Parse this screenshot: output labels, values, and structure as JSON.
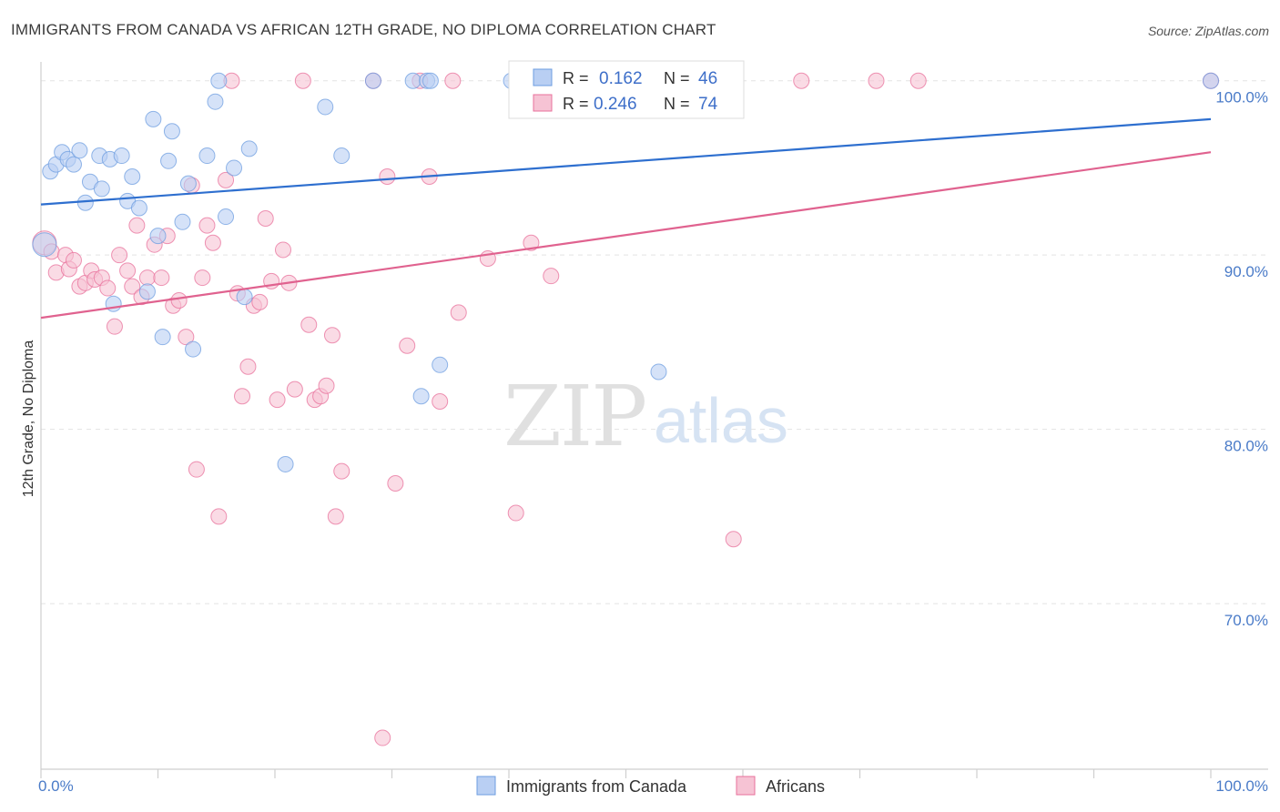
{
  "title": "IMMIGRANTS FROM CANADA VS AFRICAN 12TH GRADE, NO DIPLOMA CORRELATION CHART",
  "source": "Source: ZipAtlas.com",
  "watermark": {
    "zip": "ZIP",
    "atlas": "atlas"
  },
  "colors": {
    "blue": "#6d9de0",
    "blue_fill": "#b9cff3",
    "pink": "#e8709b",
    "pink_fill": "#f6c3d4",
    "accent": "#3e6fc9"
  },
  "stats": [
    {
      "r_label": "R = ",
      "r": "0.162",
      "n_label": "N = ",
      "n": "46"
    },
    {
      "r_label": "R = ",
      "r": "0.246",
      "n_label": "N = ",
      "n": "74"
    }
  ],
  "legend": [
    "Immigrants from Canada",
    "Africans"
  ],
  "chart_data": {
    "type": "scatter",
    "title": "IMMIGRANTS FROM CANADA VS AFRICAN 12TH GRADE, NO DIPLOMA CORRELATION CHART",
    "xlabel": "",
    "ylabel": "12th Grade, No Diploma",
    "xlim": [
      0,
      100
    ],
    "ylim": [
      60.5,
      101.5
    ],
    "x_tick_labels": [
      "0.0%",
      "100.0%"
    ],
    "y_ticks": [
      70,
      80,
      90,
      100
    ],
    "y_tick_labels": [
      "70.0%",
      "80.0%",
      "90.0%",
      "100.0%"
    ],
    "grid": true,
    "legend_position": "bottom",
    "series": [
      {
        "name": "Immigrants from Canada",
        "color": "#6d9de0",
        "trend": {
          "x": [
            0,
            100
          ],
          "y": [
            92.9,
            97.8
          ]
        },
        "points": [
          [
            0.3,
            90.6
          ],
          [
            0.8,
            94.8
          ],
          [
            1.3,
            95.2
          ],
          [
            1.8,
            95.9
          ],
          [
            2.3,
            95.5
          ],
          [
            2.8,
            95.2
          ],
          [
            3.3,
            96.0
          ],
          [
            3.8,
            93.0
          ],
          [
            4.2,
            94.2
          ],
          [
            5.0,
            95.7
          ],
          [
            5.2,
            93.8
          ],
          [
            5.9,
            95.5
          ],
          [
            6.2,
            87.2
          ],
          [
            6.9,
            95.7
          ],
          [
            7.4,
            93.1
          ],
          [
            7.8,
            94.5
          ],
          [
            8.4,
            92.7
          ],
          [
            9.1,
            87.9
          ],
          [
            9.6,
            97.8
          ],
          [
            10.0,
            91.1
          ],
          [
            10.4,
            85.3
          ],
          [
            10.9,
            95.4
          ],
          [
            11.2,
            97.1
          ],
          [
            12.1,
            91.9
          ],
          [
            12.6,
            94.1
          ],
          [
            13.0,
            84.6
          ],
          [
            14.2,
            95.7
          ],
          [
            14.9,
            98.8
          ],
          [
            15.2,
            100.0
          ],
          [
            15.8,
            92.2
          ],
          [
            16.5,
            95.0
          ],
          [
            17.4,
            87.6
          ],
          [
            17.8,
            96.1
          ],
          [
            20.9,
            78.0
          ],
          [
            24.3,
            98.5
          ],
          [
            25.7,
            95.7
          ],
          [
            28.4,
            100.0
          ],
          [
            31.8,
            100.0
          ],
          [
            32.5,
            81.9
          ],
          [
            33.0,
            100.0
          ],
          [
            33.3,
            100.0
          ],
          [
            34.1,
            83.7
          ],
          [
            40.2,
            100.0
          ],
          [
            41.6,
            100.0
          ],
          [
            52.8,
            83.3
          ],
          [
            100.0,
            100.0
          ]
        ]
      },
      {
        "name": "Africans",
        "color": "#e8709b",
        "trend": {
          "x": [
            0,
            100
          ],
          "y": [
            86.4,
            95.9
          ]
        },
        "points": [
          [
            0.3,
            90.7
          ],
          [
            0.9,
            90.2
          ],
          [
            1.3,
            89.0
          ],
          [
            2.1,
            90.0
          ],
          [
            2.4,
            89.2
          ],
          [
            2.8,
            89.7
          ],
          [
            3.3,
            88.2
          ],
          [
            3.8,
            88.4
          ],
          [
            4.3,
            89.1
          ],
          [
            4.6,
            88.6
          ],
          [
            5.2,
            88.7
          ],
          [
            5.7,
            88.1
          ],
          [
            6.3,
            85.9
          ],
          [
            6.7,
            90.0
          ],
          [
            7.4,
            89.1
          ],
          [
            7.8,
            88.2
          ],
          [
            8.2,
            91.7
          ],
          [
            8.6,
            87.6
          ],
          [
            9.1,
            88.7
          ],
          [
            9.7,
            90.6
          ],
          [
            10.3,
            88.7
          ],
          [
            10.8,
            91.1
          ],
          [
            11.3,
            87.1
          ],
          [
            11.8,
            87.4
          ],
          [
            12.4,
            85.3
          ],
          [
            12.9,
            94.0
          ],
          [
            13.3,
            77.7
          ],
          [
            13.8,
            88.7
          ],
          [
            14.2,
            91.7
          ],
          [
            14.7,
            90.7
          ],
          [
            15.2,
            75.0
          ],
          [
            15.8,
            94.3
          ],
          [
            16.3,
            100.0
          ],
          [
            16.8,
            87.8
          ],
          [
            17.2,
            81.9
          ],
          [
            17.7,
            83.6
          ],
          [
            18.2,
            87.1
          ],
          [
            18.7,
            87.3
          ],
          [
            19.2,
            92.1
          ],
          [
            19.7,
            88.5
          ],
          [
            20.2,
            81.7
          ],
          [
            20.7,
            90.3
          ],
          [
            21.2,
            88.4
          ],
          [
            21.7,
            82.3
          ],
          [
            22.4,
            100.0
          ],
          [
            22.9,
            86.0
          ],
          [
            23.4,
            81.7
          ],
          [
            23.9,
            81.9
          ],
          [
            24.4,
            82.5
          ],
          [
            24.9,
            85.4
          ],
          [
            25.2,
            75.0
          ],
          [
            25.7,
            77.6
          ],
          [
            28.4,
            100.0
          ],
          [
            29.2,
            62.3
          ],
          [
            29.6,
            94.5
          ],
          [
            30.3,
            76.9
          ],
          [
            31.3,
            84.8
          ],
          [
            32.4,
            100.0
          ],
          [
            33.2,
            94.5
          ],
          [
            34.1,
            81.6
          ],
          [
            35.2,
            100.0
          ],
          [
            35.7,
            86.7
          ],
          [
            38.2,
            89.8
          ],
          [
            40.6,
            75.2
          ],
          [
            41.9,
            90.7
          ],
          [
            43.6,
            88.8
          ],
          [
            48.8,
            100.0
          ],
          [
            55.0,
            99.2
          ],
          [
            56.6,
            100.0
          ],
          [
            59.2,
            73.7
          ],
          [
            65.0,
            100.0
          ],
          [
            71.4,
            100.0
          ],
          [
            75.0,
            100.0
          ],
          [
            100.0,
            100.0
          ]
        ]
      }
    ]
  }
}
